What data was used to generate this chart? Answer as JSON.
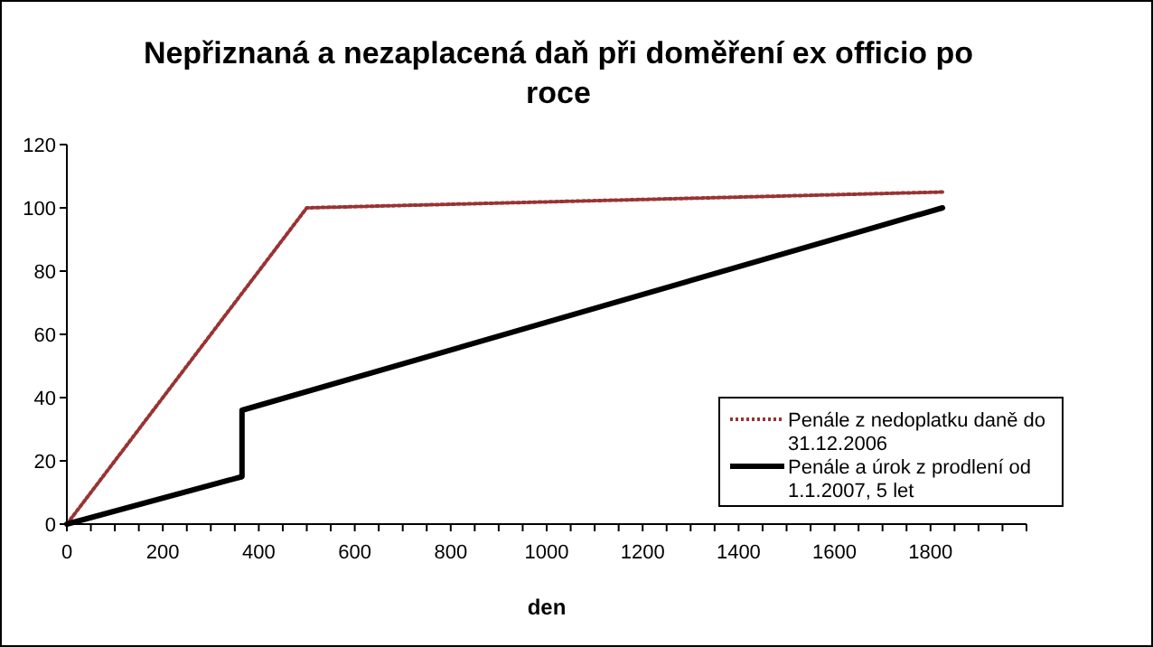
{
  "chart_data": {
    "type": "line",
    "title": "Nepřiznaná a nezaplacená daň při doměření ex officio po roce",
    "xlabel": "den",
    "xlim": [
      0,
      2000
    ],
    "xticks": [
      0,
      {
        "value": 50,
        "label": null
      },
      {
        "value": 100,
        "label": null
      },
      {
        "value": 150,
        "label": null
      },
      200,
      {
        "value": 250,
        "label": null
      },
      {
        "value": 300,
        "label": null
      },
      {
        "value": 350,
        "label": null
      },
      400,
      {
        "value": 450,
        "label": null
      },
      {
        "value": 500,
        "label": null
      },
      {
        "value": 550,
        "label": null
      },
      600,
      {
        "value": 650,
        "label": null
      },
      {
        "value": 700,
        "label": null
      },
      {
        "value": 750,
        "label": null
      },
      800,
      {
        "value": 850,
        "label": null
      },
      {
        "value": 900,
        "label": null
      },
      {
        "value": 950,
        "label": null
      },
      1000,
      {
        "value": 1050,
        "label": null
      },
      {
        "value": 1100,
        "label": null
      },
      {
        "value": 1150,
        "label": null
      },
      1200,
      {
        "value": 1250,
        "label": null
      },
      {
        "value": 1300,
        "label": null
      },
      {
        "value": 1350,
        "label": null
      },
      1400,
      {
        "value": 1450,
        "label": null
      },
      {
        "value": 1500,
        "label": null
      },
      {
        "value": 1550,
        "label": null
      },
      1600,
      {
        "value": 1650,
        "label": null
      },
      {
        "value": 1700,
        "label": null
      },
      {
        "value": 1750,
        "label": null
      },
      1800,
      {
        "value": 1850,
        "label": null
      },
      {
        "value": 1900,
        "label": null
      },
      {
        "value": 1950,
        "label": null
      },
      {
        "value": 2000,
        "label": null
      }
    ],
    "ylim": [
      0,
      120
    ],
    "yticks": [
      0,
      20,
      40,
      60,
      80,
      100,
      120
    ],
    "grid": false,
    "legend": "bottom right",
    "marker": "none",
    "series": [
      {
        "name": "Penále z nedoplatku daně do 31.12.2006",
        "color": "#993333",
        "line_style": "dotted",
        "x": [
          0,
          500,
          1825
        ],
        "values": [
          0,
          100,
          105
        ]
      },
      {
        "name": "Penále a úrok z prodlení od 1.1.2007, 5 let",
        "color": "#000000",
        "line_style": "solid",
        "x": [
          0,
          365,
          365,
          1825
        ],
        "values": [
          0,
          15,
          36,
          100
        ]
      }
    ]
  }
}
